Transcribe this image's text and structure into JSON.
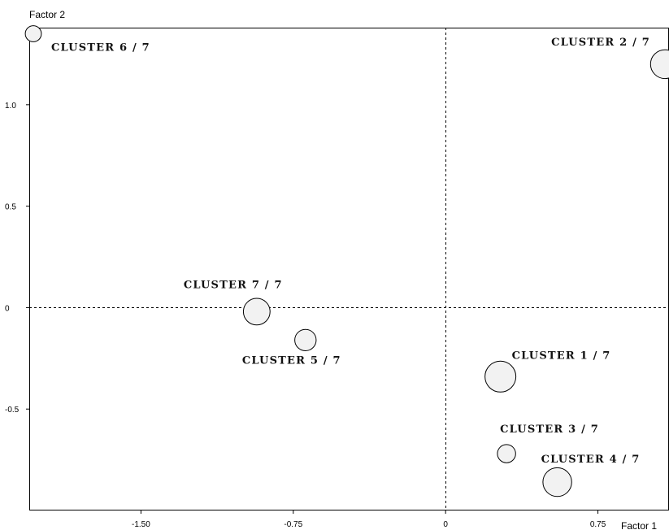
{
  "chart_data": {
    "type": "scatter",
    "xlabel": "Factor 1",
    "ylabel": "Factor 2",
    "xlim": [
      -2.05,
      1.1
    ],
    "ylim": [
      -1.0,
      1.38
    ],
    "x_ticks": [
      {
        "value": -1.5,
        "label": "-1.50"
      },
      {
        "value": -0.75,
        "label": "-0.75"
      },
      {
        "value": 0,
        "label": "0"
      },
      {
        "value": 0.75,
        "label": "0.75"
      }
    ],
    "y_ticks": [
      {
        "value": -0.5,
        "label": "-0.5"
      },
      {
        "value": 0,
        "label": "0"
      },
      {
        "value": 0.5,
        "label": "0.5"
      },
      {
        "value": 1.0,
        "label": "1.0"
      }
    ],
    "grid": false,
    "reference_lines": {
      "x": 0,
      "y": 0
    },
    "colors": {
      "point_fill": "#f2f2f2",
      "point_stroke": "#000000",
      "axis": "#000000"
    },
    "points": [
      {
        "label": "CLUSTER 1 / 7",
        "x": 0.27,
        "y": -0.34,
        "size": 2.0
      },
      {
        "label": "CLUSTER 2 / 7",
        "x": 1.08,
        "y": 1.2,
        "size": 1.8
      },
      {
        "label": "CLUSTER 3 / 7",
        "x": 0.3,
        "y": -0.72,
        "size": 0.8
      },
      {
        "label": "CLUSTER 4 / 7",
        "x": 0.55,
        "y": -0.86,
        "size": 1.8
      },
      {
        "label": "CLUSTER 5 / 7",
        "x": -0.69,
        "y": -0.16,
        "size": 1.1
      },
      {
        "label": "CLUSTER 6 / 7",
        "x": -2.03,
        "y": 1.35,
        "size": 0.6
      },
      {
        "label": "CLUSTER 7 / 7",
        "x": -0.93,
        "y": -0.02,
        "size": 1.6
      }
    ]
  }
}
